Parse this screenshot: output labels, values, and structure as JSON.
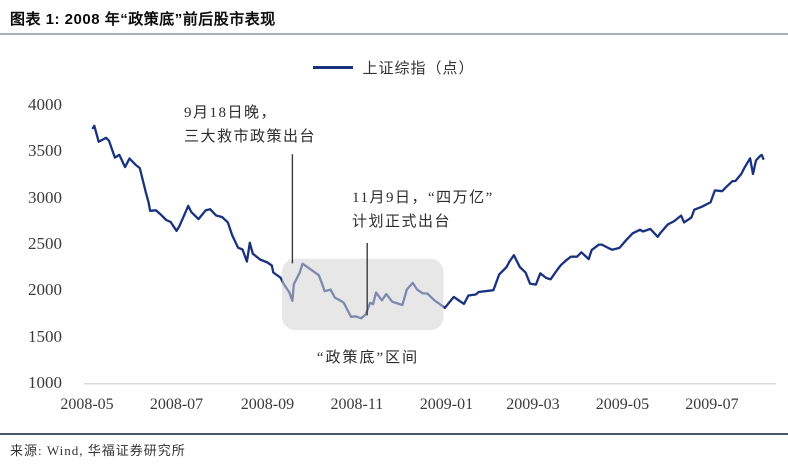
{
  "source": {
    "text": "来源: Wind, 华福证券研究所"
  },
  "chart_data": {
    "type": "line",
    "title": "图表 1: 2008 年“政策底”前后股市表现",
    "xlabel": "",
    "ylabel": "",
    "grid": false,
    "legend": [
      "上证综指（点）"
    ],
    "legend_position": "top-center",
    "line_color": "#18327f",
    "ylim": [
      1000,
      4000
    ],
    "y_ticks": [
      4000,
      3500,
      3000,
      2500,
      2000,
      1500,
      1000
    ],
    "x_ticks": [
      "2008-05",
      "2008-07",
      "2008-09",
      "2008-11",
      "2009-01",
      "2009-03",
      "2009-05",
      "2009-07"
    ],
    "annotations": [
      {
        "lines": [
          "9月18日晚，",
          "三大救市政策出台"
        ],
        "leader": {
          "date": "2008-09-18",
          "from": 3480,
          "to": 2300
        }
      },
      {
        "lines": [
          "11月9日，“四万亿”",
          "计划正式出台"
        ],
        "leader": {
          "date": "2008-11-08",
          "from": 2520,
          "to": 1740
        }
      }
    ],
    "highlight": {
      "label": "“政策底”区间",
      "x0": "2008-09-11",
      "x1": "2008-12-30",
      "y0": 1580,
      "y1": 2350,
      "fill": "#d4d4d4",
      "opacity": 0.55
    },
    "series": [
      {
        "name": "上证综指（点）",
        "points": [
          [
            "2008-05-05",
            3761
          ],
          [
            "2008-05-06",
            3786
          ],
          [
            "2008-05-09",
            3613
          ],
          [
            "2008-05-14",
            3657
          ],
          [
            "2008-05-16",
            3624
          ],
          [
            "2008-05-20",
            3443
          ],
          [
            "2008-05-23",
            3473
          ],
          [
            "2008-05-27",
            3340
          ],
          [
            "2008-05-30",
            3433
          ],
          [
            "2008-06-03",
            3367
          ],
          [
            "2008-06-06",
            3329
          ],
          [
            "2008-06-10",
            3072
          ],
          [
            "2008-06-12",
            2958
          ],
          [
            "2008-06-13",
            2868
          ],
          [
            "2008-06-17",
            2874
          ],
          [
            "2008-06-20",
            2831
          ],
          [
            "2008-06-24",
            2769
          ],
          [
            "2008-06-27",
            2748
          ],
          [
            "2008-07-01",
            2651
          ],
          [
            "2008-07-03",
            2702
          ],
          [
            "2008-07-09",
            2921
          ],
          [
            "2008-07-11",
            2856
          ],
          [
            "2008-07-16",
            2779
          ],
          [
            "2008-07-21",
            2875
          ],
          [
            "2008-07-24",
            2886
          ],
          [
            "2008-07-28",
            2818
          ],
          [
            "2008-08-01",
            2801
          ],
          [
            "2008-08-05",
            2744
          ],
          [
            "2008-08-08",
            2605
          ],
          [
            "2008-08-12",
            2470
          ],
          [
            "2008-08-15",
            2450
          ],
          [
            "2008-08-18",
            2320
          ],
          [
            "2008-08-20",
            2523
          ],
          [
            "2008-08-22",
            2405
          ],
          [
            "2008-08-27",
            2342
          ],
          [
            "2008-09-01",
            2310
          ],
          [
            "2008-09-04",
            2278
          ],
          [
            "2008-09-05",
            2202
          ],
          [
            "2008-09-10",
            2146
          ],
          [
            "2008-09-12",
            2079
          ],
          [
            "2008-09-16",
            1986
          ],
          [
            "2008-09-18",
            1896
          ],
          [
            "2008-09-19",
            2075
          ],
          [
            "2008-09-23",
            2201
          ],
          [
            "2008-09-25",
            2297
          ],
          [
            "2008-10-06",
            2173
          ],
          [
            "2008-10-08",
            2092
          ],
          [
            "2008-10-10",
            2000
          ],
          [
            "2008-10-14",
            2017
          ],
          [
            "2008-10-17",
            1931
          ],
          [
            "2008-10-21",
            1895
          ],
          [
            "2008-10-23",
            1876
          ],
          [
            "2008-10-28",
            1723
          ],
          [
            "2008-10-31",
            1729
          ],
          [
            "2008-11-04",
            1707
          ],
          [
            "2008-11-07",
            1748
          ],
          [
            "2008-11-10",
            1875
          ],
          [
            "2008-11-12",
            1860
          ],
          [
            "2008-11-14",
            1986
          ],
          [
            "2008-11-18",
            1902
          ],
          [
            "2008-11-21",
            1969
          ],
          [
            "2008-11-25",
            1888
          ],
          [
            "2008-11-28",
            1872
          ],
          [
            "2008-12-02",
            1851
          ],
          [
            "2008-12-05",
            2018
          ],
          [
            "2008-12-09",
            2090
          ],
          [
            "2008-12-12",
            2017
          ],
          [
            "2008-12-16",
            1976
          ],
          [
            "2008-12-19",
            1975
          ],
          [
            "2008-12-24",
            1898
          ],
          [
            "2008-12-29",
            1843
          ],
          [
            "2008-12-31",
            1821
          ],
          [
            "2009-01-06",
            1938
          ],
          [
            "2009-01-09",
            1905
          ],
          [
            "2009-01-13",
            1863
          ],
          [
            "2009-01-16",
            1954
          ],
          [
            "2009-01-21",
            1964
          ],
          [
            "2009-01-23",
            1991
          ],
          [
            "2009-02-02",
            2011
          ],
          [
            "2009-02-06",
            2181
          ],
          [
            "2009-02-11",
            2261
          ],
          [
            "2009-02-13",
            2321
          ],
          [
            "2009-02-16",
            2389
          ],
          [
            "2009-02-20",
            2261
          ],
          [
            "2009-02-24",
            2201
          ],
          [
            "2009-02-27",
            2082
          ],
          [
            "2009-03-03",
            2071
          ],
          [
            "2009-03-06",
            2193
          ],
          [
            "2009-03-10",
            2143
          ],
          [
            "2009-03-13",
            2128
          ],
          [
            "2009-03-17",
            2218
          ],
          [
            "2009-03-20",
            2281
          ],
          [
            "2009-03-24",
            2338
          ],
          [
            "2009-03-27",
            2374
          ],
          [
            "2009-03-31",
            2373
          ],
          [
            "2009-04-03",
            2420
          ],
          [
            "2009-04-08",
            2347
          ],
          [
            "2009-04-10",
            2444
          ],
          [
            "2009-04-15",
            2503
          ],
          [
            "2009-04-17",
            2503
          ],
          [
            "2009-04-22",
            2461
          ],
          [
            "2009-04-24",
            2448
          ],
          [
            "2009-04-29",
            2468
          ],
          [
            "2009-05-04",
            2560
          ],
          [
            "2009-05-08",
            2625
          ],
          [
            "2009-05-13",
            2664
          ],
          [
            "2009-05-15",
            2645
          ],
          [
            "2009-05-20",
            2673
          ],
          [
            "2009-05-25",
            2588
          ],
          [
            "2009-05-27",
            2632
          ],
          [
            "2009-06-01",
            2721
          ],
          [
            "2009-06-05",
            2754
          ],
          [
            "2009-06-10",
            2816
          ],
          [
            "2009-06-12",
            2743
          ],
          [
            "2009-06-17",
            2796
          ],
          [
            "2009-06-19",
            2880
          ],
          [
            "2009-06-24",
            2911
          ],
          [
            "2009-06-26",
            2928
          ],
          [
            "2009-06-30",
            2959
          ],
          [
            "2009-07-03",
            3089
          ],
          [
            "2009-07-08",
            3080
          ],
          [
            "2009-07-10",
            3113
          ],
          [
            "2009-07-15",
            3189
          ],
          [
            "2009-07-17",
            3190
          ],
          [
            "2009-07-21",
            3266
          ],
          [
            "2009-07-23",
            3328
          ],
          [
            "2009-07-27",
            3435
          ],
          [
            "2009-07-29",
            3266
          ],
          [
            "2009-07-31",
            3412
          ],
          [
            "2009-08-03",
            3463
          ],
          [
            "2009-08-04",
            3471
          ],
          [
            "2009-08-05",
            3430
          ]
        ]
      }
    ]
  }
}
